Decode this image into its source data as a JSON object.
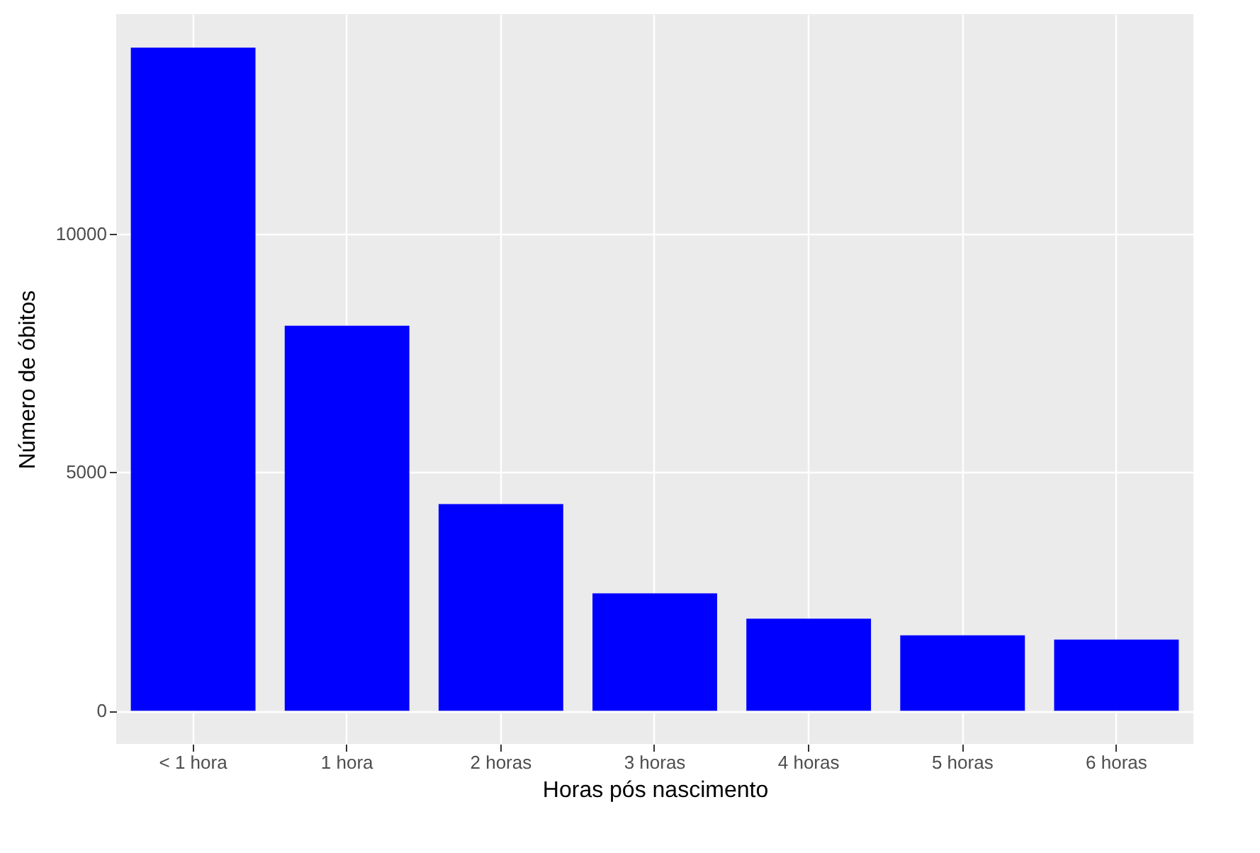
{
  "chart_data": {
    "type": "bar",
    "xlabel": "Horas pós nascimento",
    "ylabel": "Número de óbitos",
    "categories": [
      "< 1 hora",
      "1 hora",
      "2 horas",
      "3 horas",
      "4 horas",
      "5 horas",
      "6 horas"
    ],
    "values": [
      13900,
      8070,
      4330,
      2460,
      1930,
      1580,
      1490
    ],
    "color": "#0000ff",
    "ylim": [
      -695,
      14600
    ],
    "yticks": [
      0,
      5000,
      10000
    ],
    "grid": true
  }
}
